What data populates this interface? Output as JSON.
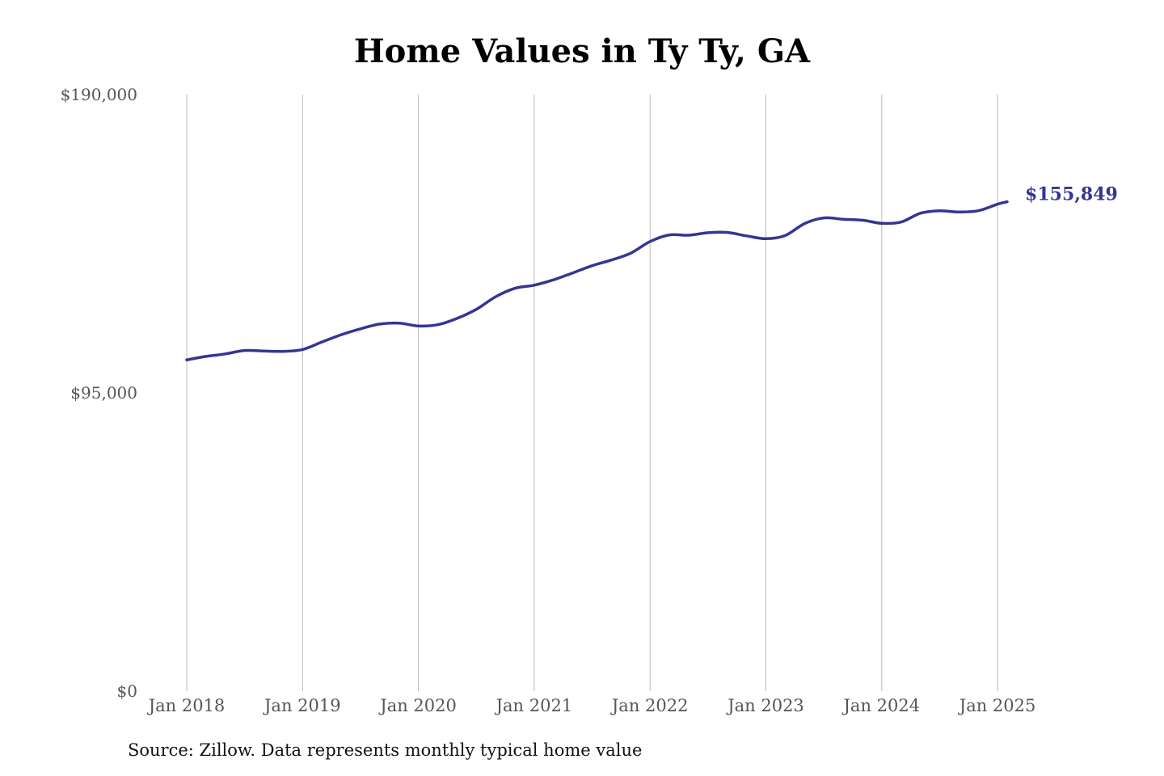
{
  "chart_data": {
    "type": "line",
    "title": "Home Values in Ty Ty, GA",
    "xlabel": "",
    "ylabel": "",
    "source": "Source: Zillow. Data represents monthly typical home value",
    "ylim": [
      0,
      190000
    ],
    "yticks": [
      {
        "value": 0,
        "label": "$0"
      },
      {
        "value": 95000,
        "label": "$95,000"
      },
      {
        "value": 190000,
        "label": "$190,000"
      }
    ],
    "xticks": [
      {
        "value": "2018-01",
        "label": "Jan 2018"
      },
      {
        "value": "2019-01",
        "label": "Jan 2019"
      },
      {
        "value": "2020-01",
        "label": "Jan 2020"
      },
      {
        "value": "2021-01",
        "label": "Jan 2021"
      },
      {
        "value": "2022-01",
        "label": "Jan 2022"
      },
      {
        "value": "2023-01",
        "label": "Jan 2023"
      },
      {
        "value": "2024-01",
        "label": "Jan 2024"
      },
      {
        "value": "2025-01",
        "label": "Jan 2025"
      }
    ],
    "xlim": [
      "2018-01",
      "2025-02"
    ],
    "grid": "vertical",
    "color": "#353593",
    "end_label": "$155,849",
    "series": [
      {
        "points": [
          [
            "2018-01",
            105500
          ],
          [
            "2018-03",
            106600
          ],
          [
            "2018-05",
            107400
          ],
          [
            "2018-07",
            108500
          ],
          [
            "2018-09",
            108300
          ],
          [
            "2018-11",
            108200
          ],
          [
            "2019-01",
            108800
          ],
          [
            "2019-03",
            111200
          ],
          [
            "2019-05",
            113500
          ],
          [
            "2019-07",
            115400
          ],
          [
            "2019-09",
            116900
          ],
          [
            "2019-11",
            117200
          ],
          [
            "2020-01",
            116300
          ],
          [
            "2020-03",
            116700
          ],
          [
            "2020-05",
            118700
          ],
          [
            "2020-07",
            121600
          ],
          [
            "2020-09",
            125600
          ],
          [
            "2020-11",
            128300
          ],
          [
            "2021-01",
            129300
          ],
          [
            "2021-03",
            131000
          ],
          [
            "2021-05",
            133200
          ],
          [
            "2021-07",
            135500
          ],
          [
            "2021-09",
            137300
          ],
          [
            "2021-11",
            139500
          ],
          [
            "2022-01",
            143200
          ],
          [
            "2022-03",
            145300
          ],
          [
            "2022-05",
            145200
          ],
          [
            "2022-07",
            146000
          ],
          [
            "2022-09",
            146100
          ],
          [
            "2022-11",
            145000
          ],
          [
            "2023-01",
            144100
          ],
          [
            "2023-03",
            145100
          ],
          [
            "2023-05",
            148900
          ],
          [
            "2023-07",
            150700
          ],
          [
            "2023-09",
            150300
          ],
          [
            "2023-11",
            150000
          ],
          [
            "2024-01",
            149000
          ],
          [
            "2024-03",
            149400
          ],
          [
            "2024-05",
            152200
          ],
          [
            "2024-07",
            153000
          ],
          [
            "2024-09",
            152600
          ],
          [
            "2024-11",
            153000
          ],
          [
            "2025-01",
            155100
          ],
          [
            "2025-02",
            155849
          ]
        ]
      }
    ]
  }
}
